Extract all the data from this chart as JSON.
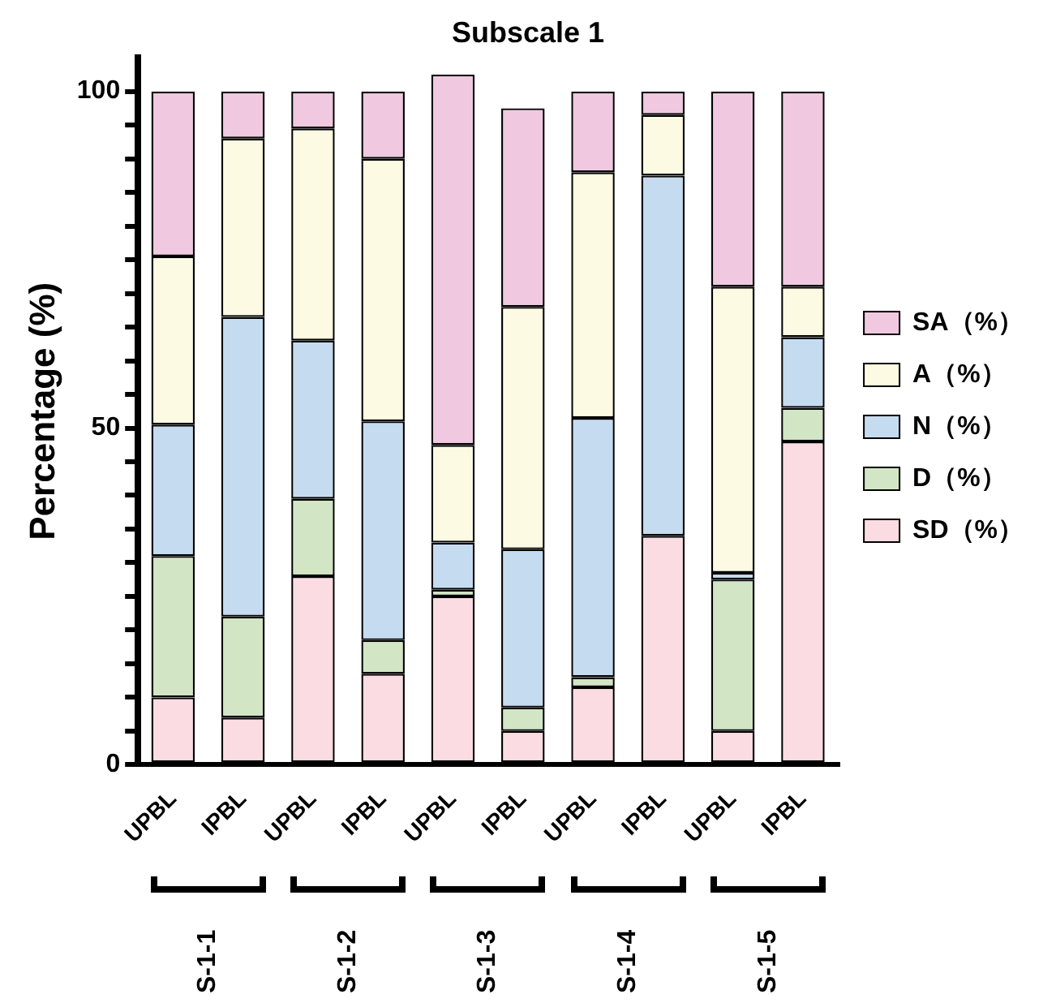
{
  "chart_data": {
    "type": "bar",
    "title": "Subscale 1",
    "ylabel": "Percentage (%)",
    "stacked": true,
    "legend": "right",
    "grid": false,
    "categories": [
      "UPBL",
      "IPBL",
      "UPBL",
      "IPBL",
      "UPBL",
      "IPBL",
      "UPBL",
      "IPBL",
      "UPBL",
      "IPBL"
    ],
    "ylim": [
      0,
      105
    ],
    "yticks": [
      0,
      {
        "value": 5,
        "label": null
      },
      {
        "value": 10,
        "label": null
      },
      {
        "value": 15,
        "label": null
      },
      {
        "value": 20,
        "label": null
      },
      {
        "value": 25,
        "label": null
      },
      {
        "value": 30,
        "label": null
      },
      {
        "value": 35,
        "label": null
      },
      {
        "value": 40,
        "label": null
      },
      {
        "value": 45,
        "label": null
      },
      50,
      {
        "value": 55,
        "label": null
      },
      {
        "value": 60,
        "label": null
      },
      {
        "value": 65,
        "label": null
      },
      {
        "value": 70,
        "label": null
      },
      {
        "value": 75,
        "label": null
      },
      {
        "value": 80,
        "label": null
      },
      {
        "value": 85,
        "label": null
      },
      {
        "value": 90,
        "label": null
      },
      {
        "value": 95,
        "label": null
      },
      100
    ],
    "series": [
      {
        "name": "SD（%）",
        "color": "#fadce2",
        "values": [
          10,
          7,
          28,
          13.5,
          25,
          5,
          11.5,
          34,
          5,
          48
        ]
      },
      {
        "name": "D（%）",
        "color": "#d2e5c4",
        "values": [
          21,
          15,
          11.5,
          5,
          1,
          3.5,
          1.5,
          0,
          22.5,
          5
        ]
      },
      {
        "name": "N（%）",
        "color": "#c5dbf0",
        "values": [
          19.5,
          44.5,
          23.5,
          32.5,
          7,
          23.5,
          38.5,
          53.5,
          1,
          10.5
        ]
      },
      {
        "name": "A（%）",
        "color": "#fcfae2",
        "values": [
          25,
          26.5,
          31.5,
          39,
          14.5,
          36,
          36.5,
          9,
          42.5,
          7.5
        ]
      },
      {
        "name": "SA（%）",
        "color": "#f0c8e0",
        "values": [
          24.5,
          7,
          5.5,
          10,
          55,
          29.5,
          12,
          3.5,
          29,
          29
        ]
      }
    ],
    "annotations": [
      "S-1-1",
      "S-1-2",
      "S-1-3",
      "S-1-4",
      "S-1-5"
    ]
  }
}
